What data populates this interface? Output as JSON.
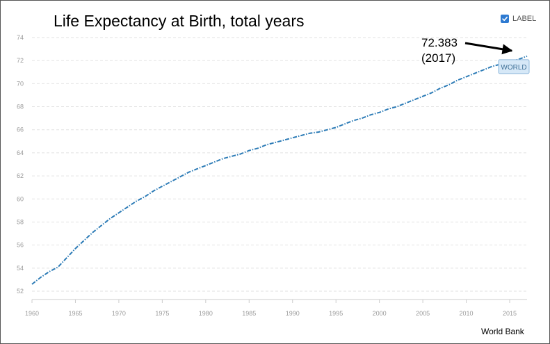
{
  "header": {
    "title": "Life Expectancy at Birth, total years"
  },
  "controls": {
    "label_toggle": "LABEL",
    "label_checked": true,
    "checkbox_color": "#2e7ad1"
  },
  "annotation": {
    "value": "72.383",
    "year": "(2017)"
  },
  "footer": {
    "source": "World Bank"
  },
  "colors": {
    "series": "#2c7bb6",
    "grid": "#e2e2e2",
    "tag_fill": "#d6e8f7",
    "tag_border": "#8fb8dc"
  },
  "chart_data": {
    "type": "line",
    "title": "Life Expectancy at Birth, total years",
    "xlabel": "",
    "ylabel": "",
    "xlim": [
      1960,
      2017
    ],
    "ylim": [
      52,
      74
    ],
    "x_ticks": [
      "1960",
      "1965",
      "1970",
      "1975",
      "1980",
      "1985",
      "1990",
      "1995",
      "2000",
      "2005",
      "2010",
      "2015"
    ],
    "y_ticks": [
      "52",
      "54",
      "56",
      "58",
      "60",
      "62",
      "64",
      "66",
      "68",
      "70",
      "72",
      "74"
    ],
    "grid": true,
    "line_style": "dash-dot",
    "series": [
      {
        "name": "WORLD",
        "x": [
          1960,
          1961,
          1962,
          1963,
          1964,
          1965,
          1966,
          1967,
          1968,
          1969,
          1970,
          1971,
          1972,
          1973,
          1974,
          1975,
          1976,
          1977,
          1978,
          1979,
          1980,
          1981,
          1982,
          1983,
          1984,
          1985,
          1986,
          1987,
          1988,
          1989,
          1990,
          1991,
          1992,
          1993,
          1994,
          1995,
          1996,
          1997,
          1998,
          1999,
          2000,
          2001,
          2002,
          2003,
          2004,
          2005,
          2006,
          2007,
          2008,
          2009,
          2010,
          2011,
          2012,
          2013,
          2014,
          2015,
          2016,
          2017
        ],
        "values": [
          52.6,
          53.2,
          53.7,
          54.1,
          54.9,
          55.7,
          56.4,
          57.1,
          57.7,
          58.3,
          58.8,
          59.3,
          59.8,
          60.2,
          60.7,
          61.1,
          61.5,
          61.9,
          62.3,
          62.6,
          62.9,
          63.2,
          63.5,
          63.7,
          63.9,
          64.2,
          64.4,
          64.7,
          64.9,
          65.1,
          65.3,
          65.5,
          65.7,
          65.8,
          66.0,
          66.2,
          66.5,
          66.8,
          67.0,
          67.3,
          67.5,
          67.8,
          68.0,
          68.3,
          68.6,
          68.9,
          69.2,
          69.6,
          69.9,
          70.3,
          70.6,
          70.9,
          71.2,
          71.5,
          71.7,
          71.9,
          72.1,
          72.383
        ]
      }
    ],
    "annotations": [
      {
        "text": "72.383 (2017)",
        "x": 2017,
        "y": 72.383
      }
    ]
  }
}
